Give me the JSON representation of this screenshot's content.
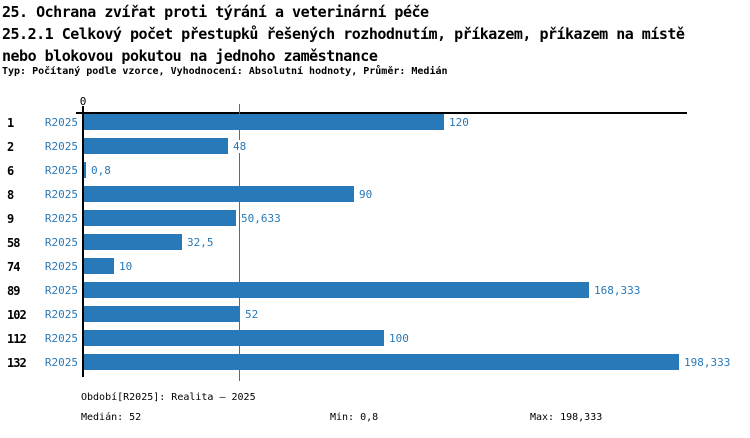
{
  "header": {
    "line1": "25. Ochrana zvířat proti týrání a veterinární péče",
    "line2": "25.2.1 Celkový počet přestupků řešených rozhodnutím, příkazem, příkazem na místě",
    "line3": "nebo blokovou pokutou na jednoho zaměstnance",
    "meta": "Typ: Počítaný podle vzorce, Vyhodnocení: Absolutní hodnoty, Průměr: Medián"
  },
  "chart_data": {
    "type": "bar",
    "orientation": "horizontal",
    "title": "25.2.1 Celkový počet přestupků řešených rozhodnutím, příkazem, příkazem na místě nebo blokovou pokutou na jednoho zaměstnance",
    "categories": [
      "1",
      "2",
      "6",
      "8",
      "9",
      "58",
      "74",
      "89",
      "102",
      "112",
      "132"
    ],
    "series": [
      {
        "name": "R2025",
        "values": [
          120,
          48,
          0.8,
          90,
          50.633,
          32.5,
          10,
          168.333,
          52,
          100,
          198.333
        ],
        "value_labels": [
          "120",
          "48",
          "0,8",
          "90",
          "50,633",
          "32,5",
          "10",
          "168,333",
          "52",
          "100",
          "198,333"
        ]
      }
    ],
    "xlabel": "",
    "ylabel": "",
    "xlim": [
      0,
      201
    ],
    "x_tick_labels": [
      "0"
    ],
    "median_line_value": 52,
    "grid": "single vertical median line",
    "legend_position": "none",
    "bar_color": "#2879b8"
  },
  "footer": {
    "period": "Období[R2025]: Realita – 2025",
    "median": "Medián: 52",
    "min": "Min: 0,8",
    "max": "Max: 198,333"
  },
  "colors": {
    "accent_blue": "#2879b8",
    "axis_black": "#000000",
    "background": "#ffffff"
  }
}
